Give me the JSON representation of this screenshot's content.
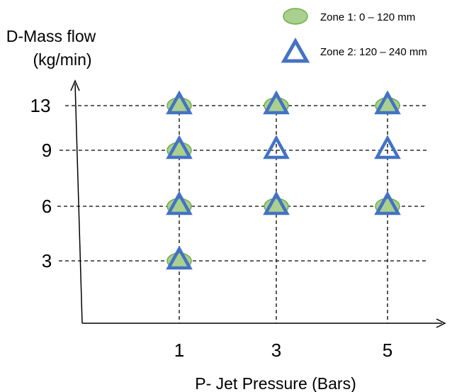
{
  "chart_data": {
    "type": "scatter",
    "ylabel_line1": "D-Mass flow",
    "ylabel_line2": "(kg/min)",
    "xlabel": "P- Jet Pressure (Bars)",
    "x_ticks": [
      1,
      3,
      5
    ],
    "y_ticks": [
      3,
      6,
      9,
      13
    ],
    "grid": "dashed lines at tick values",
    "legend_position": "top-right",
    "series": [
      {
        "name": "Zone 1: 0 – 120 mm",
        "marker": "ellipse",
        "fill_color": "#a9d08e",
        "edge_color": "#70ad47",
        "points": [
          {
            "x": 1,
            "y": 13
          },
          {
            "x": 3,
            "y": 13
          },
          {
            "x": 5,
            "y": 13
          },
          {
            "x": 1,
            "y": 9
          },
          {
            "x": 1,
            "y": 6
          },
          {
            "x": 3,
            "y": 6
          },
          {
            "x": 5,
            "y": 6
          },
          {
            "x": 1,
            "y": 3
          }
        ]
      },
      {
        "name": "Zone 2: 120 – 240 mm",
        "marker": "triangle",
        "fill_color": "none",
        "edge_color": "#4472c4",
        "points": [
          {
            "x": 1,
            "y": 13
          },
          {
            "x": 3,
            "y": 13
          },
          {
            "x": 5,
            "y": 13
          },
          {
            "x": 1,
            "y": 9
          },
          {
            "x": 3,
            "y": 9
          },
          {
            "x": 5,
            "y": 9
          },
          {
            "x": 1,
            "y": 6
          },
          {
            "x": 3,
            "y": 6
          },
          {
            "x": 5,
            "y": 6
          },
          {
            "x": 1,
            "y": 3
          }
        ]
      }
    ]
  }
}
